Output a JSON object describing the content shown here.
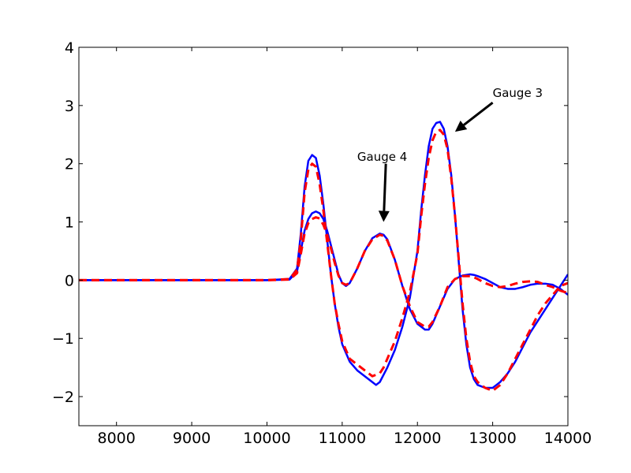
{
  "chart_data": {
    "type": "line",
    "title": "",
    "xlabel": "",
    "ylabel": "",
    "xlim": [
      7500,
      14000
    ],
    "ylim": [
      -2.5,
      4
    ],
    "xticks": [
      8000,
      9000,
      10000,
      11000,
      12000,
      13000,
      14000
    ],
    "yticks": [
      -2,
      -1,
      0,
      1,
      2,
      3,
      4
    ],
    "ytick_labels": [
      "−2",
      "−1",
      "0",
      "1",
      "2",
      "3",
      "4"
    ],
    "grid": false,
    "legend": "none",
    "series": [
      {
        "color": "#0000ff",
        "style": "solid",
        "x": [
          7500,
          9000,
          10000,
          10300,
          10400,
          10450,
          10500,
          10550,
          10600,
          10650,
          10700,
          10750,
          10800,
          10850,
          10900,
          10950,
          11000,
          11100,
          11200,
          11300,
          11400,
          11450,
          11500,
          11600,
          11700,
          11800,
          11900,
          12000,
          12050,
          12100,
          12150,
          12200,
          12250,
          12300,
          12350,
          12400,
          12450,
          12500,
          12550,
          12600,
          12650,
          12700,
          12750,
          12800,
          12900,
          13000,
          13050,
          13100,
          13200,
          13300,
          13400,
          13500,
          13600,
          13700,
          13800,
          13900,
          14000
        ],
        "y": [
          0,
          0,
          0,
          0.02,
          0.2,
          0.8,
          1.6,
          2.05,
          2.15,
          2.1,
          1.8,
          1.3,
          0.7,
          0.1,
          -0.4,
          -0.8,
          -1.1,
          -1.4,
          -1.55,
          -1.65,
          -1.75,
          -1.8,
          -1.75,
          -1.5,
          -1.2,
          -0.8,
          -0.3,
          0.5,
          1.2,
          1.8,
          2.3,
          2.6,
          2.7,
          2.72,
          2.6,
          2.3,
          1.8,
          1.1,
          0.3,
          -0.5,
          -1.1,
          -1.5,
          -1.7,
          -1.8,
          -1.85,
          -1.85,
          -1.8,
          -1.75,
          -1.6,
          -1.4,
          -1.15,
          -0.9,
          -0.7,
          -0.5,
          -0.3,
          -0.1,
          0.1
        ]
      },
      {
        "color": "#0000ff",
        "style": "solid",
        "x": [
          7500,
          9000,
          10000,
          10300,
          10400,
          10450,
          10500,
          10550,
          10600,
          10650,
          10700,
          10750,
          10800,
          10850,
          10900,
          10950,
          11000,
          11050,
          11100,
          11200,
          11300,
          11400,
          11500,
          11550,
          11600,
          11700,
          11800,
          11900,
          12000,
          12100,
          12150,
          12200,
          12300,
          12400,
          12500,
          12600,
          12700,
          12750,
          12800,
          12900,
          13000,
          13100,
          13200,
          13300,
          13400,
          13500,
          13600,
          13700,
          13800,
          13900,
          14000
        ],
        "y": [
          0,
          0,
          0,
          0.01,
          0.15,
          0.5,
          0.85,
          1.05,
          1.15,
          1.18,
          1.15,
          1.05,
          0.85,
          0.6,
          0.35,
          0.1,
          -0.05,
          -0.1,
          -0.05,
          0.2,
          0.5,
          0.72,
          0.8,
          0.78,
          0.7,
          0.35,
          -0.1,
          -0.5,
          -0.75,
          -0.85,
          -0.85,
          -0.75,
          -0.45,
          -0.15,
          0.02,
          0.08,
          0.1,
          0.09,
          0.07,
          0.02,
          -0.05,
          -0.12,
          -0.15,
          -0.15,
          -0.12,
          -0.08,
          -0.06,
          -0.06,
          -0.08,
          -0.15,
          -0.25
        ]
      },
      {
        "color": "#ff0000",
        "style": "dashed",
        "x": [
          7500,
          9000,
          10000,
          10300,
          10400,
          10450,
          10500,
          10550,
          10600,
          10650,
          10700,
          10750,
          10800,
          10850,
          10900,
          10950,
          11000,
          11100,
          11200,
          11300,
          11400,
          11500,
          11550,
          11600,
          11700,
          11800,
          11900,
          12000,
          12050,
          12100,
          12150,
          12200,
          12250,
          12300,
          12350,
          12400,
          12450,
          12500,
          12550,
          12600,
          12650,
          12700,
          12750,
          12800,
          12900,
          13000,
          13050,
          13100,
          13200,
          13300,
          13400,
          13500,
          13600,
          13700,
          13800,
          13900,
          14000
        ],
        "y": [
          0,
          0,
          0,
          0.02,
          0.18,
          0.7,
          1.5,
          1.9,
          2.0,
          1.95,
          1.65,
          1.2,
          0.65,
          0.1,
          -0.4,
          -0.75,
          -1.05,
          -1.35,
          -1.45,
          -1.55,
          -1.65,
          -1.6,
          -1.5,
          -1.35,
          -1.05,
          -0.65,
          -0.2,
          0.45,
          1.1,
          1.65,
          2.1,
          2.4,
          2.55,
          2.58,
          2.5,
          2.25,
          1.75,
          1.1,
          0.35,
          -0.4,
          -1.0,
          -1.4,
          -1.65,
          -1.75,
          -1.85,
          -1.9,
          -1.85,
          -1.8,
          -1.6,
          -1.35,
          -1.1,
          -0.85,
          -0.6,
          -0.4,
          -0.25,
          -0.1,
          -0.05
        ]
      },
      {
        "color": "#ff0000",
        "style": "dashed",
        "x": [
          7500,
          9000,
          10000,
          10300,
          10400,
          10450,
          10500,
          10550,
          10600,
          10650,
          10700,
          10750,
          10800,
          10850,
          10900,
          10950,
          11000,
          11050,
          11100,
          11200,
          11300,
          11400,
          11500,
          11550,
          11600,
          11700,
          11800,
          11900,
          12000,
          12100,
          12150,
          12200,
          12300,
          12400,
          12500,
          12600,
          12700,
          12750,
          12800,
          12900,
          13000,
          13100,
          13200,
          13300,
          13400,
          13500,
          13600,
          13700,
          13800,
          13900,
          14000
        ],
        "y": [
          0,
          0,
          0,
          0.01,
          0.12,
          0.45,
          0.8,
          0.98,
          1.05,
          1.08,
          1.06,
          0.95,
          0.78,
          0.55,
          0.3,
          0.08,
          -0.05,
          -0.08,
          -0.05,
          0.2,
          0.5,
          0.7,
          0.78,
          0.76,
          0.68,
          0.35,
          -0.1,
          -0.45,
          -0.72,
          -0.8,
          -0.8,
          -0.72,
          -0.45,
          -0.12,
          0.02,
          0.07,
          0.07,
          0.05,
          0.02,
          -0.05,
          -0.1,
          -0.12,
          -0.1,
          -0.06,
          -0.03,
          -0.02,
          -0.03,
          -0.08,
          -0.12,
          -0.18,
          -0.22
        ]
      }
    ],
    "annotations": [
      {
        "text": "Gauge 4",
        "text_xy": [
          11200,
          2.05
        ],
        "arrow_from": [
          11580,
          2.0
        ],
        "arrow_to": [
          11550,
          1.0
        ]
      },
      {
        "text": "Gauge 3",
        "text_xy": [
          13000,
          3.15
        ],
        "arrow_from": [
          13000,
          3.05
        ],
        "arrow_to": [
          12500,
          2.55
        ]
      }
    ]
  }
}
